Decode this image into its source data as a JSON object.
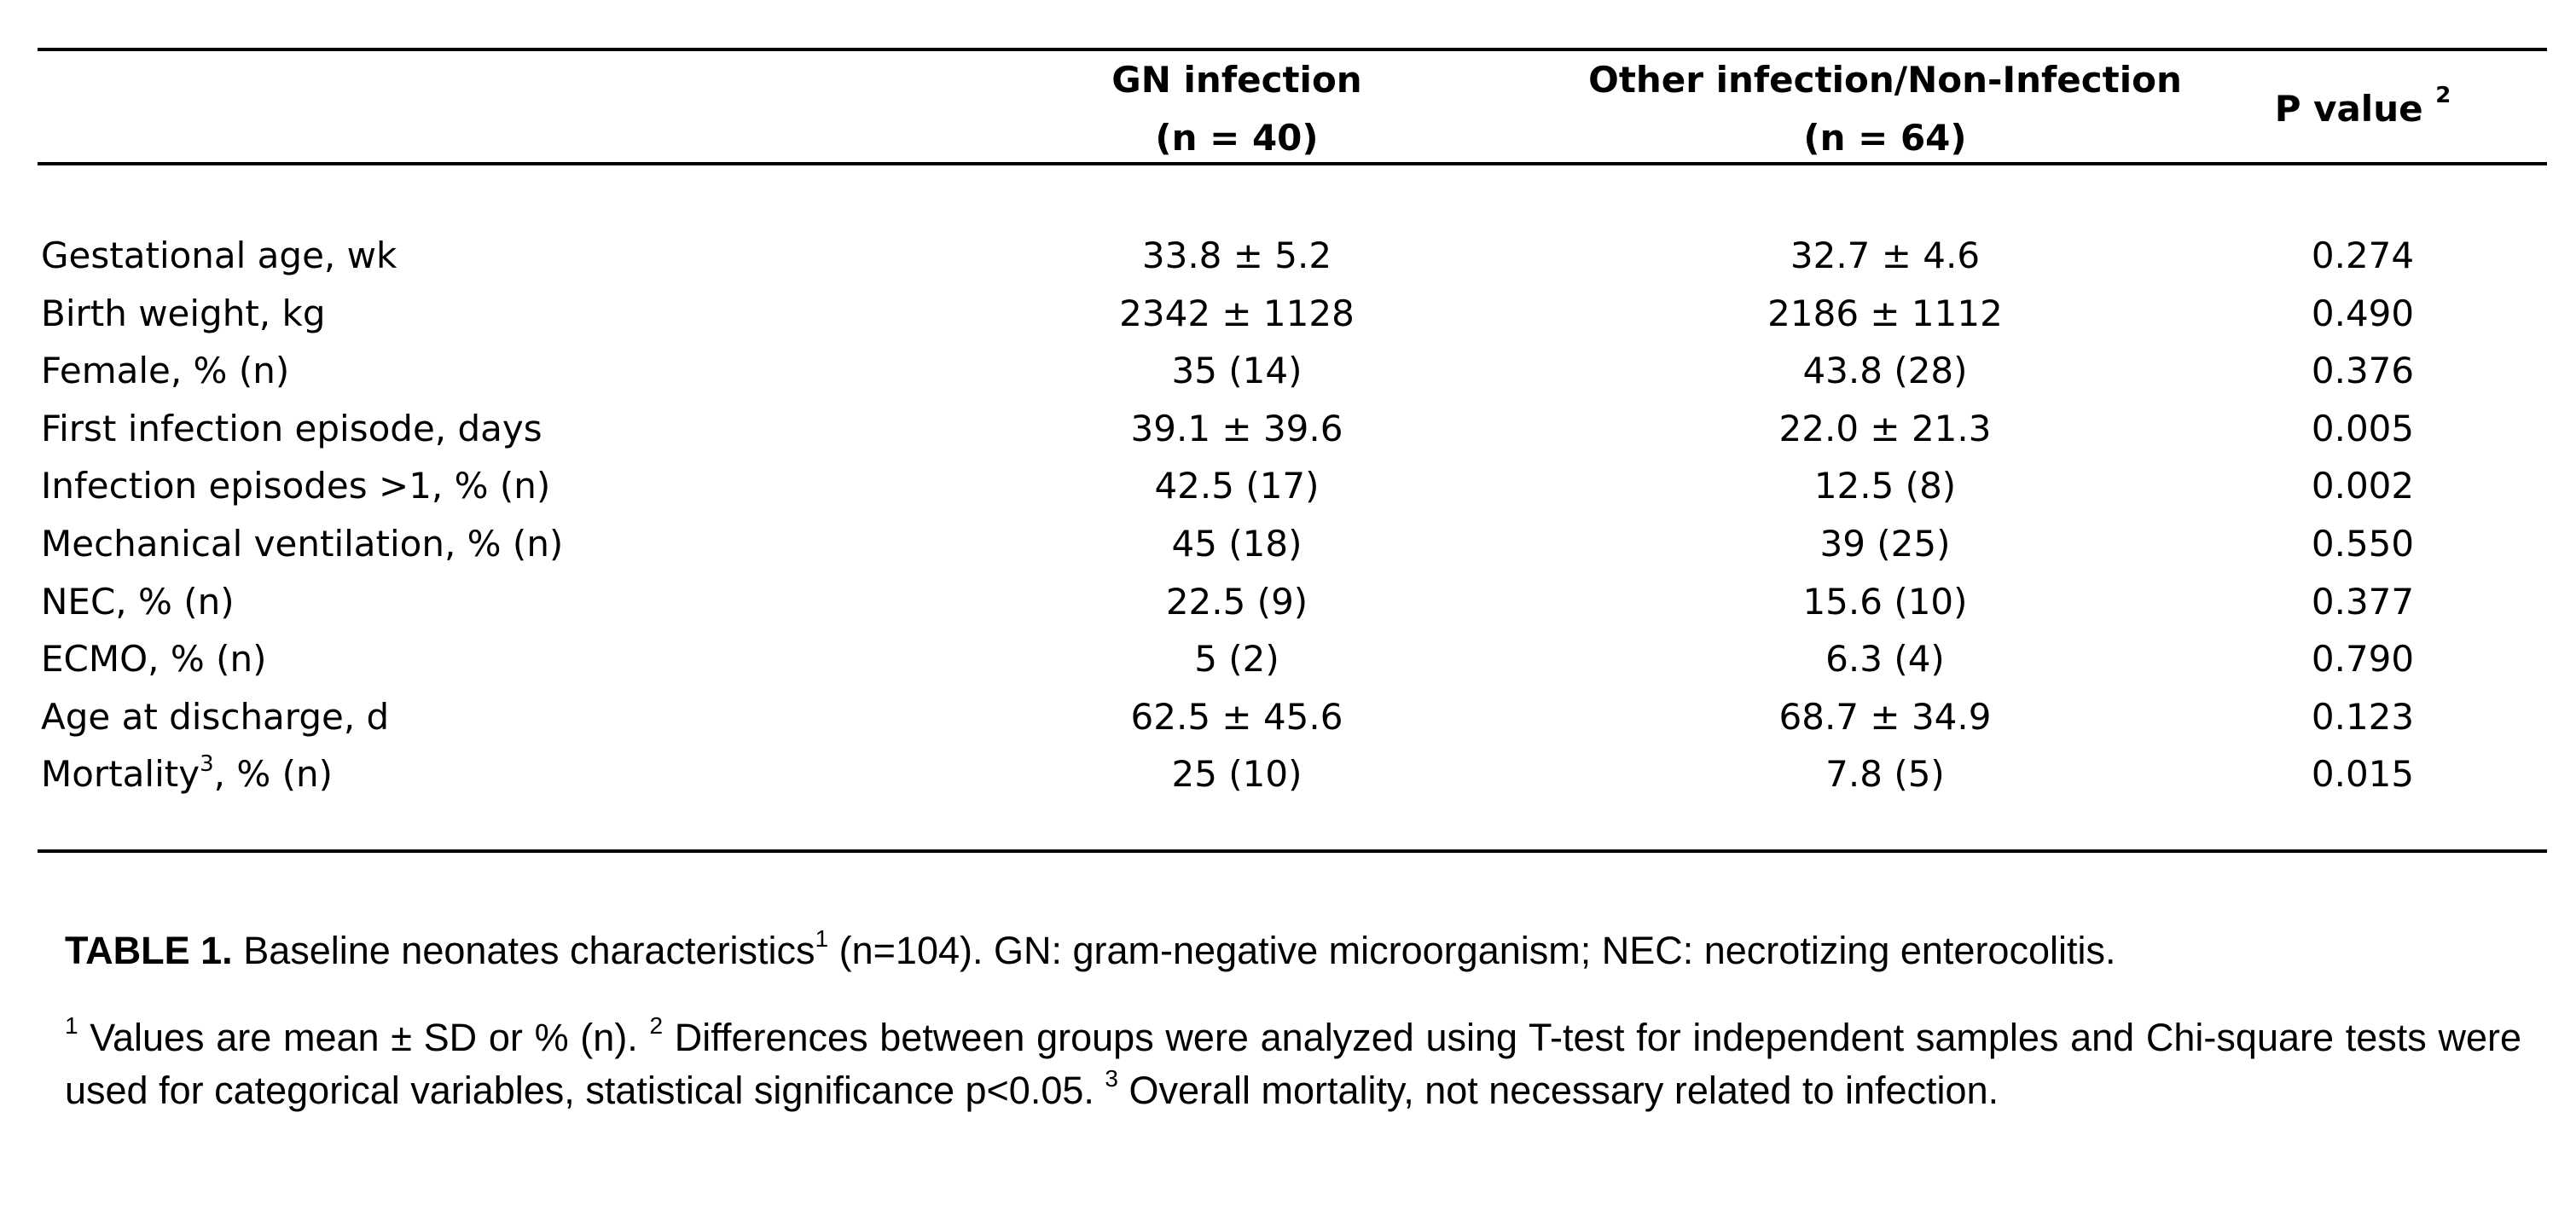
{
  "table": {
    "headers": {
      "group1": {
        "line1": "GN infection",
        "line2": "(n = 40)"
      },
      "group2": {
        "line1": "Other infection/Non-Infection",
        "line2": "(n = 64)"
      },
      "pvalue": {
        "label": "P value",
        "sup": "2"
      }
    },
    "rows": [
      {
        "label": "Gestational age, wk",
        "sup": "",
        "label_rest": "",
        "gn": "33.8 ± 5.2",
        "other": "32.7 ± 4.6",
        "p": "0.274"
      },
      {
        "label": "Birth weight, kg",
        "sup": "",
        "label_rest": "",
        "gn": "2342 ± 1128",
        "other": "2186 ± 1112",
        "p": "0.490"
      },
      {
        "label": "Female, % (n)",
        "sup": "",
        "label_rest": "",
        "gn": "35 (14)",
        "other": "43.8 (28)",
        "p": "0.376"
      },
      {
        "label": "First infection episode, days",
        "sup": "",
        "label_rest": "",
        "gn": "39.1 ± 39.6",
        "other": "22.0 ± 21.3",
        "p": "0.005"
      },
      {
        "label": "Infection episodes >1, % (n)",
        "sup": "",
        "label_rest": "",
        "gn": "42.5 (17)",
        "other": "12.5 (8)",
        "p": "0.002"
      },
      {
        "label": "Mechanical ventilation, % (n)",
        "sup": "",
        "label_rest": "",
        "gn": "45 (18)",
        "other": "39 (25)",
        "p": "0.550"
      },
      {
        "label": "NEC, % (n)",
        "sup": "",
        "label_rest": "",
        "gn": "22.5 (9)",
        "other": "15.6 (10)",
        "p": "0.377"
      },
      {
        "label": "ECMO, % (n)",
        "sup": "",
        "label_rest": "",
        "gn": "5 (2)",
        "other": "6.3 (4)",
        "p": "0.790"
      },
      {
        "label": "Age at discharge, d",
        "sup": "",
        "label_rest": "",
        "gn": "62.5 ± 45.6",
        "other": "68.7 ± 34.9",
        "p": "0.123"
      },
      {
        "label": "Mortality",
        "sup": "3",
        "label_rest": ", % (n)",
        "gn": "25 (10)",
        "other": "7.8 (5)",
        "p": "0.015"
      }
    ]
  },
  "caption": {
    "bold": "TABLE 1.",
    "text_before_sup": " Baseline neonates characteristics",
    "sup": "1",
    "text_after_sup": " (n=104). GN: gram-negative microorganism; NEC: necrotizing enterocolitis."
  },
  "footnote": {
    "sup1": "1",
    "text1": " Values are mean ± SD or % (n). ",
    "sup2": "2",
    "text2": " Differences between groups were analyzed using T-test for independent samples and Chi-square tests were used for categorical variables, statistical significance p<0.05. ",
    "sup3": "3",
    "text3": " Overall mortality, not necessary related to infection."
  }
}
